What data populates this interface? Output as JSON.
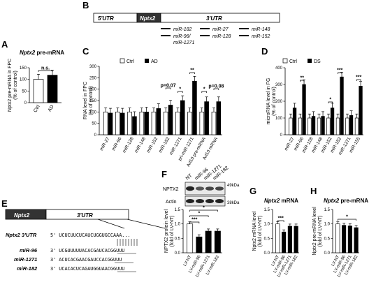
{
  "panels": {
    "A": {
      "letter": "A",
      "title_gene": "Nptx2",
      "title_rest": " pre-mRNA",
      "ylabel": "Nptx2 pre-mRNA in FPC",
      "ylabel2": "(% of control)",
      "categories": [
        "Ctrl",
        "AD"
      ],
      "values": [
        100,
        118
      ],
      "errors": [
        22,
        22
      ],
      "ylim": [
        0,
        150
      ],
      "yticks": [
        "0",
        "50",
        "100",
        "150"
      ],
      "sig": "n.s."
    },
    "B": {
      "letter": "B",
      "utr5": "5'UTR",
      "gene": "Nptx2",
      "utr3": "3'UTR",
      "sites": [
        "miR-182",
        "miR-27",
        "miR-148",
        "miR-96/",
        "miR-1271",
        "miR-128",
        "miR-152"
      ]
    },
    "C": {
      "letter": "C",
      "legend": [
        "Ctrl",
        "AD"
      ],
      "ylabel": "RNA level in FPC",
      "ylabel2": "(% of control)",
      "ylim": [
        0,
        300
      ],
      "yticks": [
        "0",
        "50",
        "100",
        "150",
        "200",
        "250",
        "300"
      ],
      "categories": [
        "miR-27",
        "miR-96",
        "miR-128",
        "miR-148",
        "miR-152",
        "miR-182",
        "miR-1271",
        "pri-miR-1271",
        "Arl10 pre-mRNA",
        "Arl10 mRNA"
      ],
      "ctrl": [
        100,
        100,
        100,
        100,
        100,
        100,
        100,
        100,
        100,
        100
      ],
      "ad": [
        95,
        95,
        80,
        100,
        115,
        130,
        150,
        235,
        145,
        145
      ],
      "sig": [
        "p=0.07",
        "*",
        "**",
        "*",
        "p=0.08"
      ]
    },
    "D": {
      "letter": "D",
      "legend": [
        "Ctrl",
        "DS"
      ],
      "ylabel": "microRNA level in FG",
      "ylabel2": "(% of control)",
      "ylim": [
        0,
        400
      ],
      "yticks": [
        "0",
        "100",
        "200",
        "300",
        "400"
      ],
      "categories": [
        "miR-27",
        "miR-96",
        "miR-128",
        "miR-148",
        "miR-152",
        "miR-182",
        "miR-1271",
        "miR-155"
      ],
      "ctrl": [
        100,
        100,
        100,
        100,
        100,
        100,
        100,
        100
      ],
      "ds": [
        160,
        300,
        110,
        110,
        160,
        345,
        115,
        290
      ],
      "sig": [
        "**",
        "*",
        "***",
        "***"
      ]
    },
    "E": {
      "letter": "E",
      "gene": "Nptx2",
      "utr3": "3'UTR",
      "rows": [
        {
          "label": "Nptx2 3'UTR",
          "seq": "5' UCUCUUCUCAUCUGGUGCCAAA..."
        },
        {
          "label": "miR-96",
          "seq": "3' UCGUUUUUACACGAUCACGGUUU"
        },
        {
          "label": "miR-1271",
          "seq": "3' ACUCACGAACGAUCCACGGUUU"
        },
        {
          "label": "miR-182",
          "seq": "3' UCACACUCAGAUGGUAACGGUUU"
        }
      ]
    },
    "F": {
      "letter": "F",
      "blot_labels": [
        "NT",
        "miR-96",
        "miR-1271",
        "miR-182"
      ],
      "rows": [
        "NPTX2",
        "Actin"
      ],
      "markers": [
        "49kDa",
        "38kDa"
      ],
      "ylabel": "NPTX2 protein level",
      "ylabel2": "(fold of LV-NT)",
      "ylim": [
        0,
        1.5
      ],
      "yticks": [
        "0.0",
        "0.5",
        "1.0",
        "1.5"
      ],
      "categories": [
        "LV-NT",
        "LV-miR-96",
        "LV-miR-1271",
        "LV-miR-182"
      ],
      "values": [
        1.0,
        0.55,
        0.75,
        0.75
      ],
      "sig": [
        "***",
        "*",
        "*"
      ]
    },
    "G": {
      "letter": "G",
      "title_gene": "Nptx2",
      "title_rest": " mRNA",
      "ylabel": "Nptx2 mRNA level",
      "ylabel2": "(fold of LV-NT)",
      "ylim": [
        0,
        1.5
      ],
      "yticks": [
        "0.0",
        "0.5",
        "1.0",
        "1.5"
      ],
      "categories": [
        "LV-NT",
        "LV-miR-96",
        "LV-miR-1271",
        "LV-miR-182"
      ],
      "values": [
        1.0,
        0.72,
        0.92,
        0.92
      ],
      "sig": [
        "***"
      ]
    },
    "H": {
      "letter": "H",
      "title_gene": "Nptx2",
      "title_rest": " pre-mRNA",
      "ylabel": "Nptx2 pre-mRNA level",
      "ylabel2": "(fold of LV-NT)",
      "ylim": [
        0,
        1.5
      ],
      "yticks": [
        "0.0",
        "0.5",
        "1.0",
        "1.5"
      ],
      "categories": [
        "LV-NT",
        "LV-miR-96",
        "LV-miR-1271",
        "LV-miR-182"
      ],
      "values": [
        1.0,
        0.95,
        0.93,
        0.87
      ],
      "sig": [
        "*"
      ]
    }
  },
  "chart_data": [
    {
      "type": "bar",
      "panel": "A",
      "categories": [
        "Ctrl",
        "AD"
      ],
      "values": [
        100,
        118
      ],
      "ylabel": "Nptx2 pre-mRNA in FPC (% of control)",
      "ylim": [
        0,
        150
      ]
    },
    {
      "type": "bar",
      "panel": "C",
      "categories": [
        "miR-27",
        "miR-96",
        "miR-128",
        "miR-148",
        "miR-152",
        "miR-182",
        "miR-1271",
        "pri-miR-1271",
        "Arl10 pre-mRNA",
        "Arl10 mRNA"
      ],
      "series": [
        {
          "name": "Ctrl",
          "values": [
            100,
            100,
            100,
            100,
            100,
            100,
            100,
            100,
            100,
            100
          ]
        },
        {
          "name": "AD",
          "values": [
            95,
            95,
            80,
            100,
            115,
            130,
            150,
            235,
            145,
            145
          ]
        }
      ],
      "ylabel": "RNA level in FPC (% of control)",
      "ylim": [
        0,
        300
      ]
    },
    {
      "type": "bar",
      "panel": "D",
      "categories": [
        "miR-27",
        "miR-96",
        "miR-128",
        "miR-148",
        "miR-152",
        "miR-182",
        "miR-1271",
        "miR-155"
      ],
      "series": [
        {
          "name": "Ctrl",
          "values": [
            100,
            100,
            100,
            100,
            100,
            100,
            100,
            100
          ]
        },
        {
          "name": "DS",
          "values": [
            160,
            300,
            110,
            110,
            160,
            345,
            115,
            290
          ]
        }
      ],
      "ylabel": "microRNA level in FG (% of control)",
      "ylim": [
        0,
        400
      ]
    },
    {
      "type": "bar",
      "panel": "F",
      "categories": [
        "LV-NT",
        "LV-miR-96",
        "LV-miR-1271",
        "LV-miR-182"
      ],
      "values": [
        1.0,
        0.55,
        0.75,
        0.75
      ],
      "ylabel": "NPTX2 protein level (fold of LV-NT)",
      "ylim": [
        0,
        1.5
      ]
    },
    {
      "type": "bar",
      "panel": "G",
      "categories": [
        "LV-NT",
        "LV-miR-96",
        "LV-miR-1271",
        "LV-miR-182"
      ],
      "values": [
        1.0,
        0.72,
        0.92,
        0.92
      ],
      "ylabel": "Nptx2 mRNA level (fold of LV-NT)",
      "ylim": [
        0,
        1.5
      ]
    },
    {
      "type": "bar",
      "panel": "H",
      "categories": [
        "LV-NT",
        "LV-miR-96",
        "LV-miR-1271",
        "LV-miR-182"
      ],
      "values": [
        1.0,
        0.95,
        0.93,
        0.87
      ],
      "ylabel": "Nptx2 pre-mRNA level (fold of LV-NT)",
      "ylim": [
        0,
        1.5
      ]
    }
  ]
}
